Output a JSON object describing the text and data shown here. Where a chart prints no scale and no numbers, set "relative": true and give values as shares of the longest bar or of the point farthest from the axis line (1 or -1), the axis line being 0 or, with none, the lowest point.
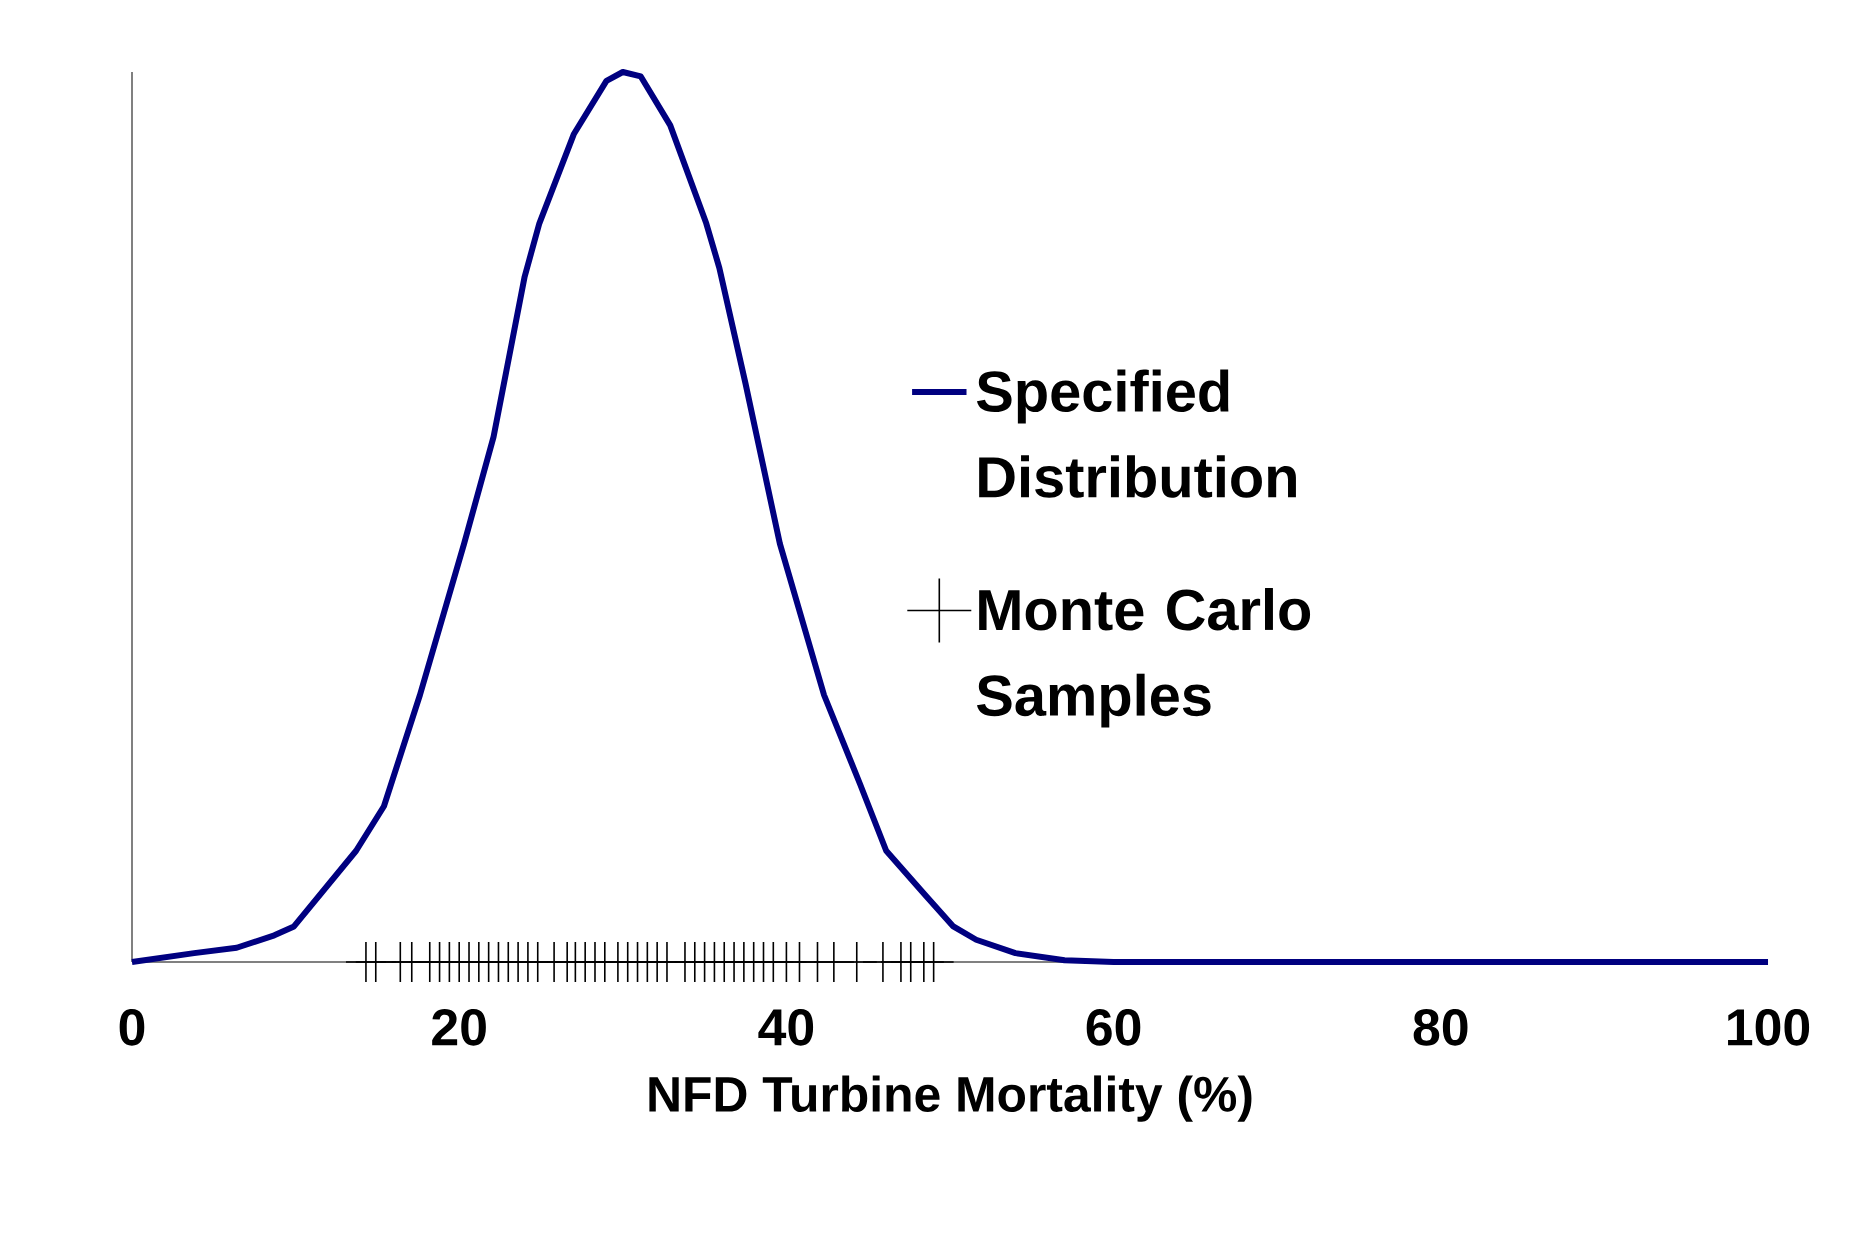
{
  "chart_data": {
    "type": "line",
    "xlabel": "NFD Turbine Mortality (%)",
    "relative": true,
    "xlim": [
      0,
      100
    ],
    "xticks": [
      0,
      20,
      40,
      60,
      80,
      100
    ],
    "legend": "right",
    "grid": false,
    "series": [
      {
        "name": "Specified Distribution",
        "color": "#000080",
        "marker": "none",
        "line_style": "solid",
        "x": [
          0,
          3.8,
          6.4,
          8.7,
          9.9,
          13.7,
          15.4,
          17.6,
          20.3,
          22.1,
          24.0,
          24.9,
          27.0,
          29.0,
          30.0,
          31.1,
          32.9,
          35.1,
          35.9,
          37.5,
          39.6,
          42.3,
          44.5,
          46.1,
          48.4,
          50.2,
          51.6,
          54,
          57,
          60,
          70,
          80,
          90,
          100
        ],
        "values": [
          0,
          0.01,
          0.016,
          0.03,
          0.04,
          0.125,
          0.175,
          0.3,
          0.47,
          0.59,
          0.77,
          0.83,
          0.93,
          0.99,
          1.0,
          0.995,
          0.94,
          0.83,
          0.78,
          0.65,
          0.47,
          0.3,
          0.2,
          0.125,
          0.077,
          0.04,
          0.025,
          0.01,
          0.002,
          0,
          0,
          0,
          0,
          0
        ]
      },
      {
        "name": "Monte Carlo Samples",
        "type": "scatter",
        "color": "#000000",
        "marker": "cross",
        "x": [
          14.3,
          14.9,
          16.4,
          17.1,
          18.2,
          18.8,
          19.4,
          20.0,
          20.6,
          21.2,
          21.8,
          22.4,
          23.0,
          23.6,
          24.2,
          24.8,
          25.8,
          26.6,
          27.1,
          27.7,
          28.3,
          28.9,
          29.7,
          30.3,
          30.9,
          31.5,
          32.1,
          32.7,
          33.8,
          34.4,
          35.0,
          35.6,
          36.2,
          36.8,
          37.4,
          38.0,
          38.6,
          39.2,
          40.0,
          40.8,
          41.9,
          42.9,
          44.3,
          45.9,
          47.0,
          47.6,
          48.4,
          49.0
        ],
        "values": [
          0,
          0,
          0,
          0,
          0,
          0,
          0,
          0,
          0,
          0,
          0,
          0,
          0,
          0,
          0,
          0,
          0,
          0,
          0,
          0,
          0,
          0,
          0,
          0,
          0,
          0,
          0,
          0,
          0,
          0,
          0,
          0,
          0,
          0,
          0,
          0,
          0,
          0,
          0,
          0,
          0,
          0,
          0,
          0,
          0,
          0,
          0,
          0
        ]
      }
    ]
  }
}
